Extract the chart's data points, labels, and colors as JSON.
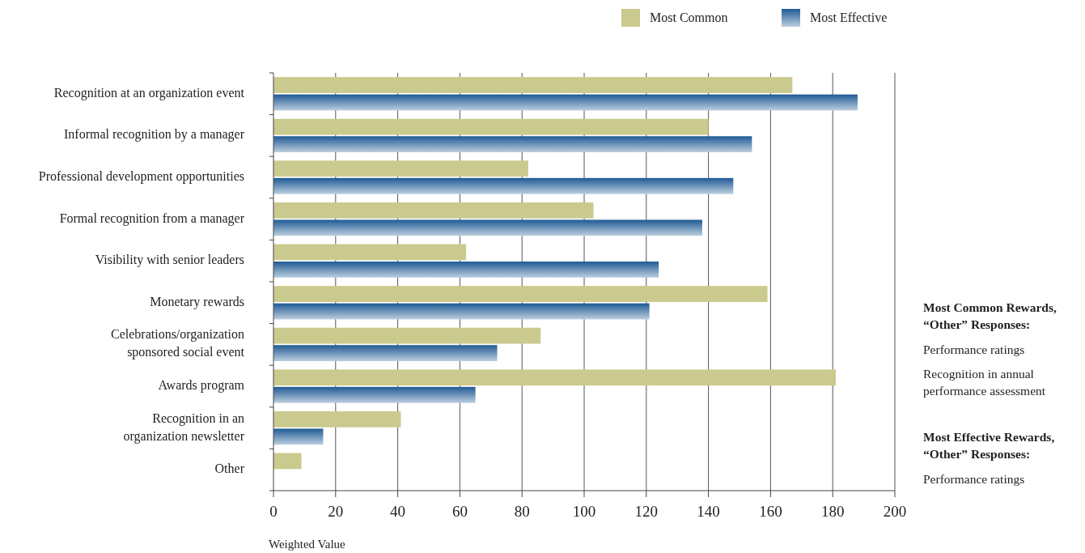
{
  "chart_data": {
    "type": "bar",
    "orientation": "horizontal",
    "categories": [
      "Recognition at an organization event",
      "Informal recognition by a manager",
      "Professional development opportunities",
      "Formal recognition from a manager",
      "Visibility with senior leaders",
      "Monetary rewards",
      "Celebrations/organization sponsored social event",
      "Awards program",
      "Recognition in an organization newsletter",
      "Other"
    ],
    "series": [
      {
        "name": "Most Common",
        "color": "#cbca8e",
        "values": [
          167,
          140,
          82,
          103,
          62,
          159,
          86,
          181,
          41,
          9
        ]
      },
      {
        "name": "Most Effective",
        "color": "#1f5a94",
        "values": [
          188,
          154,
          148,
          138,
          124,
          121,
          72,
          65,
          16,
          null
        ]
      }
    ],
    "xlim": [
      0,
      200
    ],
    "xticks": [
      0,
      20,
      40,
      60,
      80,
      100,
      120,
      140,
      160,
      180,
      200
    ],
    "xlabel": "Weighted Value",
    "grid": "x",
    "legend": "top",
    "annotations": [
      "Most Common Rewards, “Other” Responses:",
      "Performance ratings",
      "Recognition in annual performance assessment",
      "Most Effective Rewards, “Other” Responses:",
      "Performance ratings"
    ]
  }
}
